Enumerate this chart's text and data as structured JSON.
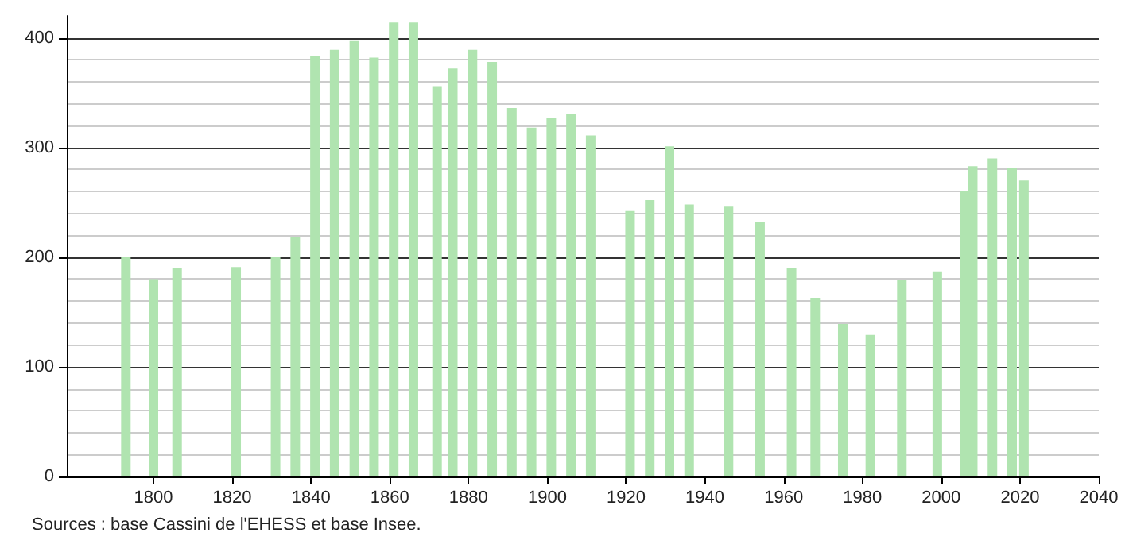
{
  "chart_data": {
    "type": "bar",
    "x": [
      1793,
      1800,
      1806,
      1821,
      1831,
      1836,
      1841,
      1846,
      1851,
      1856,
      1861,
      1866,
      1872,
      1876,
      1881,
      1886,
      1891,
      1896,
      1901,
      1906,
      1911,
      1921,
      1926,
      1931,
      1936,
      1946,
      1954,
      1962,
      1968,
      1975,
      1982,
      1990,
      1999,
      2006,
      2008,
      2013,
      2018,
      2021
    ],
    "values": [
      200,
      180,
      190,
      191,
      200,
      218,
      383,
      389,
      397,
      382,
      414,
      414,
      356,
      372,
      389,
      378,
      336,
      318,
      327,
      331,
      311,
      242,
      252,
      301,
      248,
      246,
      232,
      190,
      163,
      139,
      129,
      179,
      187,
      260,
      283,
      290,
      281,
      270
    ],
    "color": "#b0e4b0",
    "xlim": [
      1778,
      2040
    ],
    "xticks": [
      1800,
      1820,
      1840,
      1860,
      1880,
      1900,
      1920,
      1940,
      1960,
      1980,
      2000,
      2020,
      2040
    ],
    "ylim": [
      0,
      420
    ],
    "yticks": [
      0,
      100,
      200,
      300,
      400
    ],
    "grid": "y",
    "annotations": [
      "Sources : base Cassini de l'EHESS et base Insee."
    ]
  }
}
